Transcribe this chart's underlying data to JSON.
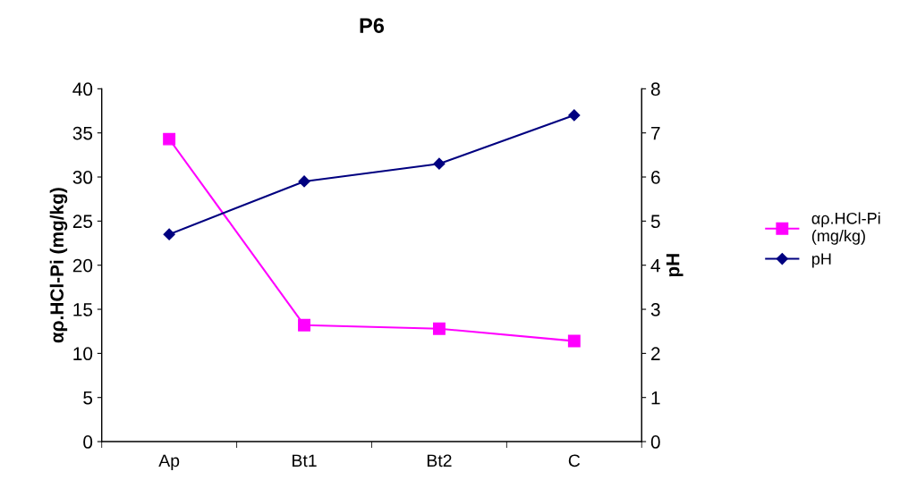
{
  "chart_data": {
    "type": "line",
    "title": "P6",
    "ylabel": "αρ.HCl-Pi (mg/kg)",
    "y2label": "pH",
    "categories": [
      "Ap",
      "Bt1",
      "Bt2",
      "C"
    ],
    "series": [
      {
        "name": "αρ.HCl-Pi\n(mg/kg)",
        "color": "#ff00ff",
        "marker": "square",
        "values": [
          34.3,
          13.2,
          12.8,
          11.4
        ]
      },
      {
        "name": "pH",
        "color": "#000080",
        "marker": "diamond",
        "axis": "y2",
        "values": [
          4.7,
          5.9,
          6.3,
          7.4
        ]
      }
    ],
    "ylim": [
      0,
      40
    ],
    "yticks": [
      0,
      5,
      10,
      15,
      20,
      25,
      30,
      35,
      40
    ],
    "y2lim": [
      0,
      8
    ],
    "y2ticks": [
      0,
      1,
      2,
      3,
      4,
      5,
      6,
      7,
      8
    ],
    "grid": false,
    "legend": "right",
    "line_style": "solid"
  }
}
